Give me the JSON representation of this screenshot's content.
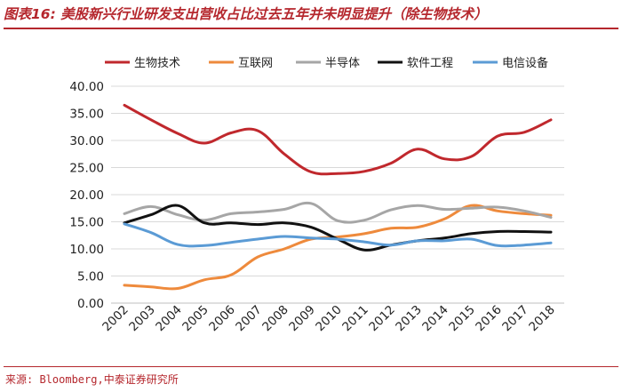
{
  "figure": {
    "title": "图表16: 美股新兴行业研发支出营收占比过去五年并未明显提升（除生物技术）",
    "source": "来源: Bloomberg,中泰证券研究所"
  },
  "chart_data": {
    "type": "line",
    "title": "图表16: 美股新兴行业研发支出营收占比过去五年并未明显提升（除生物技术）",
    "xlabel": "",
    "ylabel": "",
    "ylim": [
      0,
      40
    ],
    "yticks": [
      "0.00",
      "5.00",
      "10.00",
      "15.00",
      "20.00",
      "25.00",
      "30.00",
      "35.00",
      "40.00"
    ],
    "categories": [
      "2002",
      "2003",
      "2004",
      "2005",
      "2006",
      "2007",
      "2008",
      "2009",
      "2010",
      "2011",
      "2012",
      "2013",
      "2014",
      "2015",
      "2016",
      "2017",
      "2018"
    ],
    "legend_position": "top",
    "grid": true,
    "series": [
      {
        "name": "生物技术",
        "color": "#c0282d",
        "values": [
          36.5,
          33.8,
          31.3,
          29.5,
          31.4,
          31.8,
          27.5,
          24.2,
          23.9,
          24.3,
          25.8,
          28.4,
          26.6,
          27.0,
          30.8,
          31.5,
          33.8
        ]
      },
      {
        "name": "互联网",
        "color": "#ee8a3c",
        "values": [
          3.3,
          3.0,
          2.7,
          4.3,
          5.2,
          8.5,
          10.0,
          11.8,
          12.2,
          12.8,
          13.8,
          14.0,
          15.5,
          18.0,
          17.0,
          16.5,
          16.2
        ]
      },
      {
        "name": "半导体",
        "color": "#a6a6a6",
        "values": [
          16.5,
          17.8,
          16.3,
          15.3,
          16.5,
          16.8,
          17.3,
          18.4,
          15.2,
          15.3,
          17.2,
          18.0,
          17.3,
          17.5,
          17.7,
          17.0,
          15.8
        ]
      },
      {
        "name": "软件工程",
        "color": "#111111",
        "values": [
          14.8,
          16.3,
          18.0,
          14.8,
          14.8,
          14.5,
          14.8,
          14.0,
          11.8,
          9.8,
          10.7,
          11.5,
          12.0,
          12.8,
          13.2,
          13.2,
          13.1
        ]
      },
      {
        "name": "电信设备",
        "color": "#5b9bd5",
        "values": [
          14.6,
          13.0,
          10.8,
          10.6,
          11.2,
          11.8,
          12.3,
          12.0,
          11.8,
          11.3,
          10.7,
          11.5,
          11.5,
          11.8,
          10.6,
          10.7,
          11.1
        ]
      }
    ]
  }
}
